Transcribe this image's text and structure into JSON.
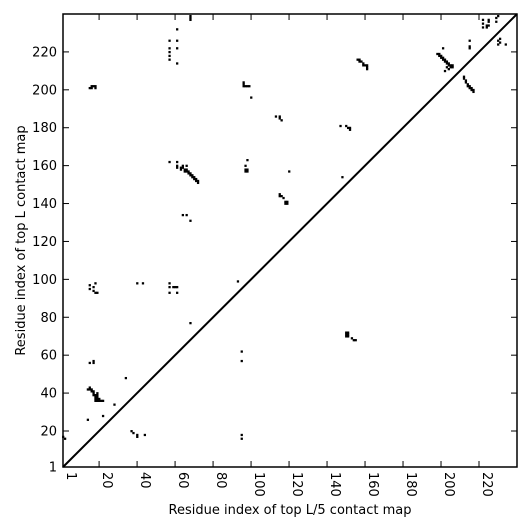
{
  "chart_data": {
    "type": "heatmap",
    "title": "",
    "xlabel": "Residue index of top L/5 contact map",
    "ylabel": "Residue index of top L contact map",
    "xlim": [
      1,
      240
    ],
    "ylim": [
      1,
      240
    ],
    "xticks": [
      1,
      20,
      40,
      60,
      80,
      100,
      120,
      140,
      160,
      180,
      200,
      220
    ],
    "yticks": [
      1,
      20,
      40,
      60,
      80,
      100,
      120,
      140,
      160,
      180,
      200,
      220
    ],
    "diagonal": true,
    "contact_color": "#000000",
    "upper_contacts": [
      [
        57,
        216
      ],
      [
        57,
        218
      ],
      [
        57,
        220
      ],
      [
        57,
        222
      ],
      [
        57,
        226
      ],
      [
        61,
        214
      ],
      [
        61,
        222
      ],
      [
        61,
        226
      ],
      [
        61,
        232
      ],
      [
        68,
        237
      ],
      [
        68,
        238
      ],
      [
        68,
        239
      ],
      [
        15,
        201
      ],
      [
        16,
        201
      ],
      [
        16,
        202
      ],
      [
        17,
        202
      ],
      [
        18,
        202
      ],
      [
        18,
        201
      ],
      [
        96,
        202
      ],
      [
        96,
        203
      ],
      [
        96,
        204
      ],
      [
        97,
        202
      ],
      [
        98,
        202
      ],
      [
        99,
        202
      ],
      [
        100,
        196
      ],
      [
        113,
        186
      ],
      [
        115,
        186
      ],
      [
        115,
        185
      ],
      [
        116,
        184
      ],
      [
        147,
        181
      ],
      [
        150,
        181
      ],
      [
        151,
        180
      ],
      [
        152,
        180
      ],
      [
        152,
        179
      ],
      [
        156,
        216
      ],
      [
        157,
        216
      ],
      [
        157,
        215
      ],
      [
        158,
        215
      ],
      [
        159,
        214
      ],
      [
        159,
        213
      ],
      [
        160,
        213
      ],
      [
        161,
        213
      ],
      [
        161,
        212
      ],
      [
        161,
        211
      ],
      [
        198,
        219
      ],
      [
        199,
        219
      ],
      [
        199,
        218
      ],
      [
        200,
        218
      ],
      [
        200,
        217
      ],
      [
        201,
        217
      ],
      [
        201,
        216
      ],
      [
        202,
        216
      ],
      [
        202,
        215
      ],
      [
        203,
        215
      ],
      [
        203,
        214
      ],
      [
        203,
        212
      ],
      [
        204,
        214
      ],
      [
        204,
        213
      ],
      [
        204,
        211
      ],
      [
        205,
        213
      ],
      [
        205,
        212
      ],
      [
        206,
        213
      ],
      [
        206,
        212
      ],
      [
        201,
        222
      ],
      [
        202,
        210
      ],
      [
        212,
        207
      ],
      [
        212,
        206
      ],
      [
        213,
        205
      ],
      [
        213,
        204
      ],
      [
        214,
        203
      ],
      [
        214,
        202
      ],
      [
        215,
        202
      ],
      [
        215,
        201
      ],
      [
        216,
        201
      ],
      [
        216,
        200
      ],
      [
        217,
        200
      ],
      [
        217,
        199
      ],
      [
        215,
        222
      ],
      [
        215,
        223
      ],
      [
        215,
        226
      ],
      [
        222,
        233
      ],
      [
        222,
        235
      ],
      [
        222,
        237
      ],
      [
        224,
        233
      ],
      [
        224,
        234
      ],
      [
        225,
        236
      ],
      [
        225,
        237
      ],
      [
        225,
        234
      ],
      [
        229,
        236
      ],
      [
        229,
        238
      ],
      [
        230,
        239
      ],
      [
        230,
        224
      ],
      [
        230,
        226
      ],
      [
        231,
        227
      ],
      [
        231,
        225
      ],
      [
        234,
        224
      ]
    ],
    "lower_contacts": [
      [
        57,
        162
      ],
      [
        61,
        159
      ],
      [
        61,
        160
      ],
      [
        61,
        162
      ],
      [
        63,
        158
      ],
      [
        63,
        159
      ],
      [
        64,
        159
      ],
      [
        64,
        160
      ],
      [
        65,
        158
      ],
      [
        65,
        157
      ],
      [
        66,
        157
      ],
      [
        66,
        158
      ],
      [
        66,
        160
      ],
      [
        67,
        156
      ],
      [
        67,
        157
      ],
      [
        68,
        155
      ],
      [
        68,
        156
      ],
      [
        69,
        154
      ],
      [
        69,
        155
      ],
      [
        70,
        153
      ],
      [
        70,
        154
      ],
      [
        71,
        152
      ],
      [
        71,
        153
      ],
      [
        72,
        151
      ],
      [
        72,
        152
      ],
      [
        64,
        134
      ],
      [
        66,
        134
      ],
      [
        68,
        131
      ],
      [
        97,
        160
      ],
      [
        97,
        158
      ],
      [
        97,
        157
      ],
      [
        98,
        163
      ],
      [
        98,
        158
      ],
      [
        98,
        157
      ],
      [
        120,
        157
      ],
      [
        115,
        145
      ],
      [
        115,
        144
      ],
      [
        116,
        144
      ],
      [
        117,
        143
      ],
      [
        118,
        141
      ],
      [
        118,
        140
      ],
      [
        119,
        141
      ],
      [
        119,
        140
      ],
      [
        15,
        97
      ],
      [
        15,
        95
      ],
      [
        17,
        96
      ],
      [
        17,
        94
      ],
      [
        18,
        98
      ],
      [
        18,
        93
      ],
      [
        19,
        93
      ],
      [
        40,
        98
      ],
      [
        43,
        98
      ],
      [
        57,
        98
      ],
      [
        57,
        96
      ],
      [
        57,
        93
      ],
      [
        59,
        96
      ],
      [
        60,
        96
      ],
      [
        61,
        96
      ],
      [
        61,
        93
      ],
      [
        93,
        99
      ],
      [
        95,
        62
      ],
      [
        95,
        57
      ],
      [
        68,
        77
      ],
      [
        15,
        56
      ],
      [
        17,
        56
      ],
      [
        17,
        57
      ],
      [
        34,
        48
      ],
      [
        14,
        42
      ],
      [
        15,
        42
      ],
      [
        15,
        43
      ],
      [
        16,
        41
      ],
      [
        16,
        42
      ],
      [
        17,
        40
      ],
      [
        17,
        41
      ],
      [
        17,
        39
      ],
      [
        18,
        38
      ],
      [
        18,
        39
      ],
      [
        18,
        37
      ],
      [
        18,
        36
      ],
      [
        19,
        40
      ],
      [
        19,
        39
      ],
      [
        19,
        38
      ],
      [
        19,
        37
      ],
      [
        19,
        36
      ],
      [
        20,
        37
      ],
      [
        20,
        36
      ],
      [
        21,
        36
      ],
      [
        22,
        36
      ],
      [
        22,
        28
      ],
      [
        28,
        34
      ],
      [
        14,
        26
      ],
      [
        37,
        20
      ],
      [
        38,
        19
      ],
      [
        40,
        18
      ],
      [
        40,
        17
      ],
      [
        44,
        18
      ],
      [
        95,
        18
      ],
      [
        95,
        16
      ],
      [
        1,
        17
      ],
      [
        2,
        16
      ],
      [
        150,
        72
      ],
      [
        150,
        71
      ],
      [
        150,
        70
      ],
      [
        151,
        72
      ],
      [
        151,
        71
      ],
      [
        151,
        70
      ],
      [
        153,
        69
      ],
      [
        154,
        68
      ],
      [
        155,
        68
      ],
      [
        148,
        154
      ]
    ]
  }
}
